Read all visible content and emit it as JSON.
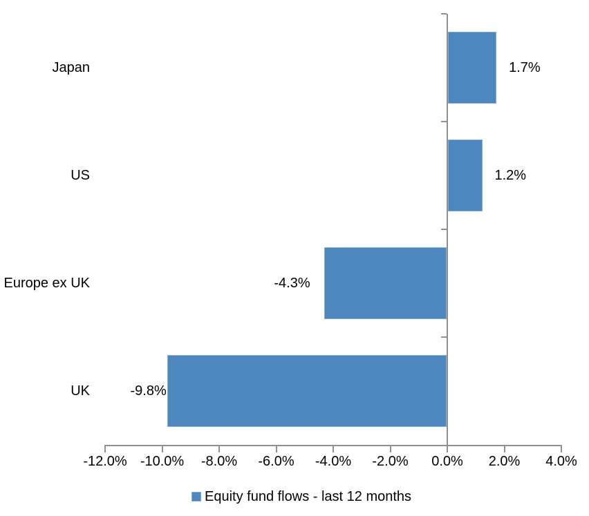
{
  "chart_data": {
    "type": "bar",
    "orientation": "horizontal",
    "title": "",
    "legend": "Equity fund flows - last 12 months",
    "legend_position": "bottom",
    "categories": [
      "Japan",
      "US",
      "Europe ex UK",
      "UK"
    ],
    "values": [
      1.7,
      1.2,
      -4.3,
      -9.8
    ],
    "value_labels": [
      "1.7%",
      "1.2%",
      "-4.3%",
      "-9.8%"
    ],
    "x_ticks": [
      -12,
      -10,
      -8,
      -6,
      -4,
      -2,
      0,
      2,
      4
    ],
    "x_tick_labels": [
      "-12.0%",
      "-10.0%",
      "-8.0%",
      "-6.0%",
      "-4.0%",
      "-2.0%",
      "0.0%",
      "2.0%",
      "4.0%"
    ],
    "xlim": [
      -12,
      4
    ],
    "grid": "off",
    "bar_color": "#4E86BE",
    "bar_border_color": "#86ABD1",
    "axis_color": "#8F8F8F",
    "text_color": "#000000"
  }
}
